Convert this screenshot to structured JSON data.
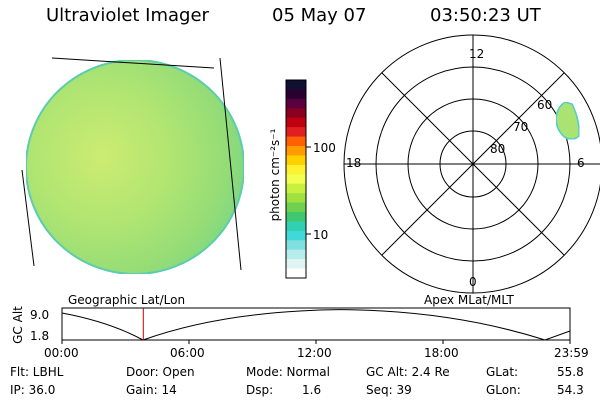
{
  "header": {
    "title": "Ultraviolet Imager",
    "date": "05 May 07",
    "time": "03:50:23 UT"
  },
  "colorbar": {
    "axis_label": "photon cm⁻²s⁻¹",
    "ticks": [
      "100",
      "10"
    ],
    "colors": [
      "#101030",
      "#2a0030",
      "#5a0040",
      "#8a0020",
      "#c00010",
      "#e02020",
      "#ff6000",
      "#ff9a00",
      "#ffd000",
      "#fff030",
      "#f0ff50",
      "#c8f040",
      "#a0e040",
      "#70d050",
      "#40c870",
      "#30d0b0",
      "#40d8d8",
      "#80e0e0",
      "#b8ecec",
      "#e0f4f4",
      "#ffffff"
    ]
  },
  "left_panel": {
    "label": "Geographic Lat/Lon",
    "disk_color": "#a8e050",
    "edge_color": "#50c8a8"
  },
  "right_panel": {
    "label": "Apex MLat/MLT",
    "mlt": {
      "top": "12",
      "left": "18",
      "right": "6",
      "bottom": "0"
    },
    "mlat": [
      "60",
      "70",
      "80"
    ]
  },
  "altitude_plot": {
    "ylabel": "GC Alt",
    "y_ticks": [
      "9.0",
      "1.8"
    ],
    "x_ticks": [
      "00:00",
      "06:00",
      "12:00",
      "18:00",
      "23:59"
    ],
    "marker_color": "#c00000",
    "marker_hour": 3.84
  },
  "info": {
    "filter": "Flt: LBHL",
    "ip": "IP: 36.0",
    "door": "Door: Open",
    "gain": "Gain: 14",
    "mode": "Mode: Normal",
    "dsp_label": "Dsp:",
    "dsp_value": "1.6",
    "gc_alt": "GC Alt: 2.4 Re",
    "seq": "Seq: 39",
    "glat_label": "GLat:",
    "glat_value": "55.8",
    "glon_label": "GLon:",
    "glon_value": "54.3"
  }
}
